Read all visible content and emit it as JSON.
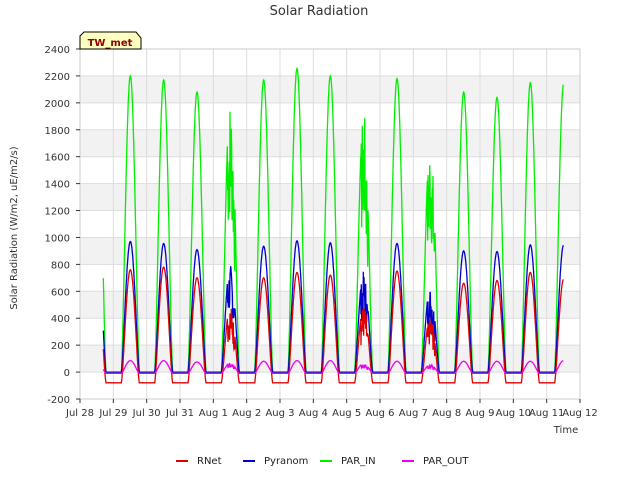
{
  "chart_data": {
    "type": "line",
    "title": "Solar Radiation",
    "xlabel": "Time",
    "ylabel": "Solar Radiation (W/m2, uE/m2/s)",
    "station_label": "TW_met",
    "ylim": [
      -200,
      2400
    ],
    "yticks": [
      -200,
      0,
      200,
      400,
      600,
      800,
      1000,
      1200,
      1400,
      1600,
      1800,
      2000,
      2200,
      2400
    ],
    "xlim": [
      0,
      15
    ],
    "xtick_labels": [
      "Jul 28",
      "Jul 29",
      "Jul 30",
      "Jul 31",
      "Aug 1",
      "Aug 2",
      "Aug 3",
      "Aug 4",
      "Aug 5",
      "Aug 6",
      "Aug 7",
      "Aug 8",
      "Aug 9",
      "Aug 10",
      "Aug 11",
      "Aug 12"
    ],
    "grid": true,
    "legend_position": "bottom",
    "series": [
      {
        "name": "RNet",
        "color": "#dd0000",
        "night": -80,
        "daily_peaks": [
          760,
          780,
          700,
          500,
          700,
          740,
          720,
          500,
          750,
          420,
          660,
          680,
          740,
          690
        ]
      },
      {
        "name": "Pyranom",
        "color": "#0000cc",
        "night": 0,
        "daily_peaks": [
          970,
          955,
          910,
          800,
          935,
          975,
          960,
          750,
          955,
          640,
          900,
          895,
          945,
          945
        ]
      },
      {
        "name": "PAR_IN",
        "color": "#00ee00",
        "night": 0,
        "daily_peaks": [
          2200,
          2170,
          2080,
          2050,
          2170,
          2255,
          2200,
          1940,
          2180,
          1740,
          2080,
          2040,
          2150,
          2140
        ]
      },
      {
        "name": "PAR_OUT",
        "color": "#ee00ee",
        "night": -10,
        "daily_peaks": [
          85,
          85,
          75,
          70,
          80,
          85,
          85,
          65,
          80,
          55,
          80,
          80,
          80,
          85
        ]
      }
    ]
  }
}
